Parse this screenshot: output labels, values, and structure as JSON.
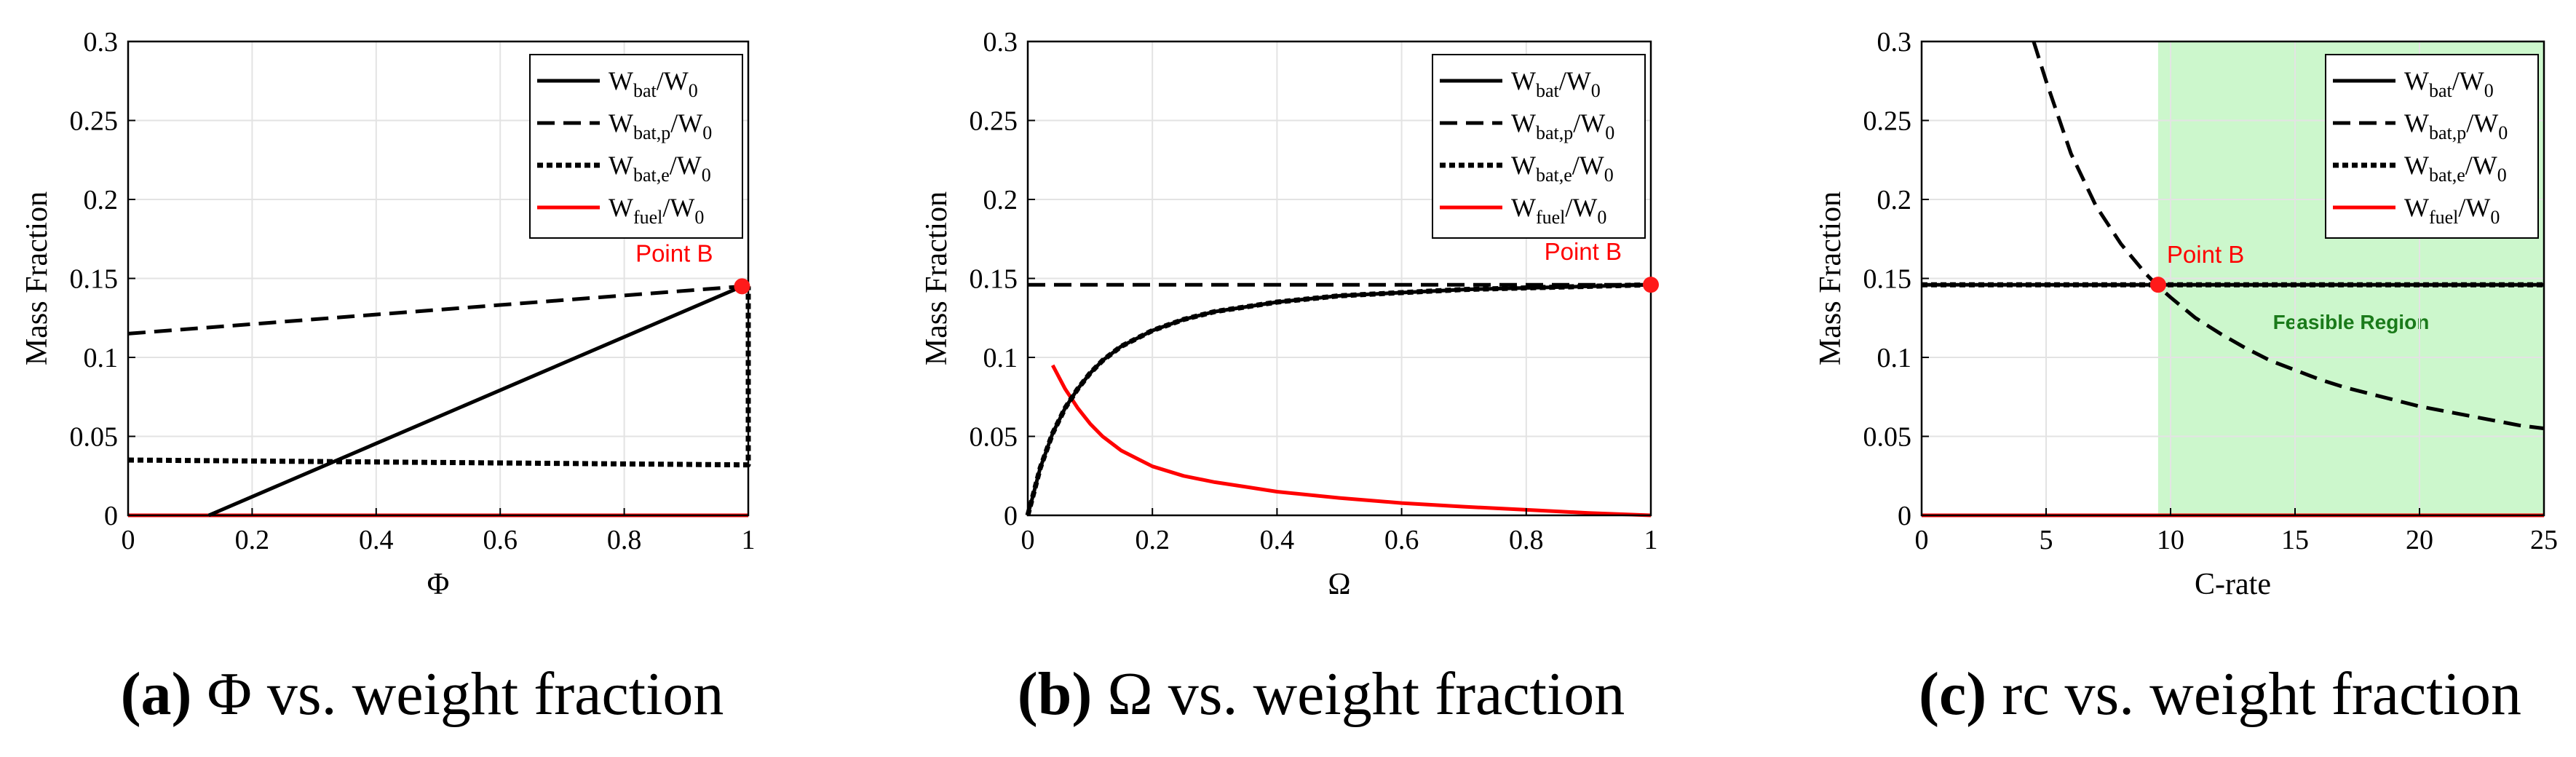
{
  "chart_data": [
    {
      "type": "line",
      "panel": "a",
      "xlabel": "Φ",
      "ylabel": "Mass Fraction",
      "xlim": [
        0,
        1
      ],
      "ylim": [
        0,
        0.3
      ],
      "xticks": [
        0,
        0.2,
        0.4,
        0.6,
        0.8,
        1
      ],
      "xtick_labels": [
        "0",
        "0.2",
        "0.4",
        "0.6",
        "0.8",
        "1"
      ],
      "yticks": [
        0,
        0.05,
        0.1,
        0.15,
        0.2,
        0.25,
        0.3
      ],
      "ytick_labels": [
        "0",
        "0.05",
        "0.1",
        "0.15",
        "0.2",
        "0.25",
        "0.3"
      ],
      "grid": true,
      "legend_position": "top-right",
      "series": [
        {
          "name": "Wbat/W0",
          "style": "solid",
          "color": "#000000",
          "x": [
            0.13,
            0.99
          ],
          "y": [
            0,
            0.145
          ]
        },
        {
          "name": "Wbat,p/W0",
          "style": "dashed",
          "color": "#000000",
          "x": [
            0,
            0.99
          ],
          "y": [
            0.115,
            0.145
          ]
        },
        {
          "name": "Wbat,e/W0",
          "style": "dotted",
          "color": "#000000",
          "x": [
            0,
            0.985,
            0.985,
            1.0,
            1.0
          ],
          "y": [
            0.035,
            0.032,
            0.032,
            0.032,
            0.145
          ]
        },
        {
          "name": "Wfuel/W0",
          "style": "solid",
          "color": "#ff0000",
          "x": [
            0,
            1
          ],
          "y": [
            0,
            0
          ]
        }
      ],
      "point": {
        "label": "Point B",
        "x": 0.99,
        "y": 0.145
      },
      "caption": {
        "letter": "(a)",
        "text": " Φ vs. weight fraction"
      }
    },
    {
      "type": "line",
      "panel": "b",
      "xlabel": "Ω",
      "ylabel": "Mass Fraction",
      "xlim": [
        0,
        1
      ],
      "ylim": [
        0,
        0.3
      ],
      "xticks": [
        0,
        0.2,
        0.4,
        0.6,
        0.8,
        1
      ],
      "xtick_labels": [
        "0",
        "0.2",
        "0.4",
        "0.6",
        "0.8",
        "1"
      ],
      "yticks": [
        0,
        0.05,
        0.1,
        0.15,
        0.2,
        0.25,
        0.3
      ],
      "ytick_labels": [
        "0",
        "0.05",
        "0.1",
        "0.15",
        "0.2",
        "0.25",
        "0.3"
      ],
      "grid": true,
      "legend_position": "top-right",
      "series": [
        {
          "name": "Wbat/W0",
          "style": "solid",
          "color": "#000000",
          "x": [
            0,
            0.01,
            0.02,
            0.04,
            0.06,
            0.08,
            0.1,
            0.12,
            0.15,
            0.2,
            0.25,
            0.3,
            0.35,
            0.4,
            0.5,
            0.6,
            0.7,
            0.8,
            0.9,
            1.0
          ],
          "y": [
            0,
            0.015,
            0.03,
            0.052,
            0.068,
            0.08,
            0.09,
            0.098,
            0.107,
            0.117,
            0.124,
            0.129,
            0.132,
            0.135,
            0.139,
            0.141,
            0.143,
            0.144,
            0.145,
            0.146
          ]
        },
        {
          "name": "Wbat,p/W0",
          "style": "dashed",
          "color": "#000000",
          "x": [
            0,
            1
          ],
          "y": [
            0.146,
            0.146
          ]
        },
        {
          "name": "Wbat,e/W0",
          "style": "dotted",
          "color": "#000000",
          "x": [
            0,
            0.01,
            0.02,
            0.04,
            0.06,
            0.08,
            0.1,
            0.12,
            0.15,
            0.2,
            0.25,
            0.3,
            0.35,
            0.4,
            0.5,
            0.6,
            0.7,
            0.8,
            0.9,
            1.0
          ],
          "y": [
            0,
            0.015,
            0.03,
            0.052,
            0.068,
            0.08,
            0.09,
            0.098,
            0.107,
            0.117,
            0.124,
            0.129,
            0.132,
            0.135,
            0.139,
            0.141,
            0.143,
            0.144,
            0.145,
            0.146
          ]
        },
        {
          "name": "Wfuel/W0",
          "style": "solid",
          "color": "#ff0000",
          "x": [
            0.04,
            0.06,
            0.08,
            0.1,
            0.12,
            0.15,
            0.2,
            0.25,
            0.3,
            0.35,
            0.4,
            0.5,
            0.6,
            0.7,
            0.8,
            0.9,
            1.0
          ],
          "y": [
            0.095,
            0.08,
            0.068,
            0.058,
            0.05,
            0.041,
            0.031,
            0.025,
            0.021,
            0.018,
            0.015,
            0.011,
            0.0078,
            0.0055,
            0.0035,
            0.0015,
            0.0
          ]
        }
      ],
      "point": {
        "label": "Point B",
        "x": 1.0,
        "y": 0.146
      },
      "caption": {
        "letter": "(b)",
        "text": " Ω vs. weight fraction"
      }
    },
    {
      "type": "line",
      "panel": "c",
      "xlabel": "C-rate",
      "ylabel": "Mass Fraction",
      "xlim": [
        0,
        25
      ],
      "ylim": [
        0,
        0.3
      ],
      "xticks": [
        0,
        5,
        10,
        15,
        20,
        25
      ],
      "xtick_labels": [
        "0",
        "5",
        "10",
        "15",
        "20",
        "25"
      ],
      "yticks": [
        0,
        0.05,
        0.1,
        0.15,
        0.2,
        0.25,
        0.3
      ],
      "ytick_labels": [
        "0",
        "0.05",
        "0.1",
        "0.15",
        "0.2",
        "0.25",
        "0.3"
      ],
      "grid": true,
      "legend_position": "top-right",
      "series": [
        {
          "name": "Wbat/W0",
          "style": "solid",
          "color": "#000000",
          "x": [
            0,
            25
          ],
          "y": [
            0.146,
            0.146
          ]
        },
        {
          "name": "Wbat,p/W0",
          "style": "dashed",
          "color": "#000000",
          "x": [
            4.5,
            5,
            6,
            7,
            8,
            9,
            9.5,
            10,
            11,
            12,
            13,
            14,
            15,
            16,
            17,
            18,
            19,
            20,
            21,
            22,
            23,
            24,
            25
          ],
          "y": [
            0.3,
            0.275,
            0.229,
            0.196,
            0.172,
            0.153,
            0.145,
            0.138,
            0.125,
            0.115,
            0.106,
            0.098,
            0.092,
            0.086,
            0.081,
            0.077,
            0.073,
            0.069,
            0.066,
            0.063,
            0.06,
            0.057,
            0.055
          ]
        },
        {
          "name": "Wbat,e/W0",
          "style": "dotted",
          "color": "#000000",
          "x": [
            0,
            25
          ],
          "y": [
            0.146,
            0.146
          ]
        },
        {
          "name": "Wfuel/W0",
          "style": "solid",
          "color": "#ff0000",
          "x": [
            0,
            25
          ],
          "y": [
            0,
            0
          ]
        }
      ],
      "region": {
        "label": "Feasible Region",
        "x0": 9.5,
        "x1": 25,
        "color": "#ccf7cc",
        "text_color": "#1a7a1a"
      },
      "point": {
        "label": "Point B",
        "x": 9.5,
        "y": 0.146
      },
      "caption": {
        "letter": "(c)",
        "text": " rc vs. weight fraction"
      }
    }
  ],
  "legend_labels": [
    {
      "base": "W",
      "sub": "bat",
      "tail": "/W",
      "tail_sub": "0"
    },
    {
      "base": "W",
      "sub": "bat,p",
      "tail": "/W",
      "tail_sub": "0"
    },
    {
      "base": "W",
      "sub": "bat,e",
      "tail": "/W",
      "tail_sub": "0"
    },
    {
      "base": "W",
      "sub": "fuel",
      "tail": "/W",
      "tail_sub": "0"
    }
  ]
}
